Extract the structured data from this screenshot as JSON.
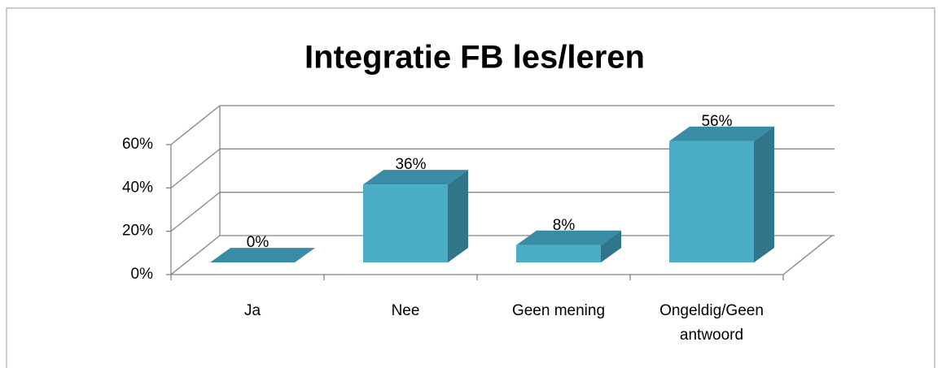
{
  "chart_data": {
    "type": "bar",
    "title": "Integratie FB les/leren",
    "categories": [
      "Ja",
      "Nee",
      "Geen mening",
      "Ongeldig/Geen antwoord"
    ],
    "values": [
      0,
      36,
      8,
      56
    ],
    "value_labels": [
      "0%",
      "36%",
      "8%",
      "56%"
    ],
    "color": "#4bacc6",
    "ylim": [
      0,
      60
    ],
    "yticks": [
      {
        "value": 0,
        "label": "0%"
      },
      {
        "value": 20,
        "label": "20%"
      },
      {
        "value": 40,
        "label": "40%"
      },
      {
        "value": 60,
        "label": "60%"
      }
    ],
    "grid": true
  }
}
